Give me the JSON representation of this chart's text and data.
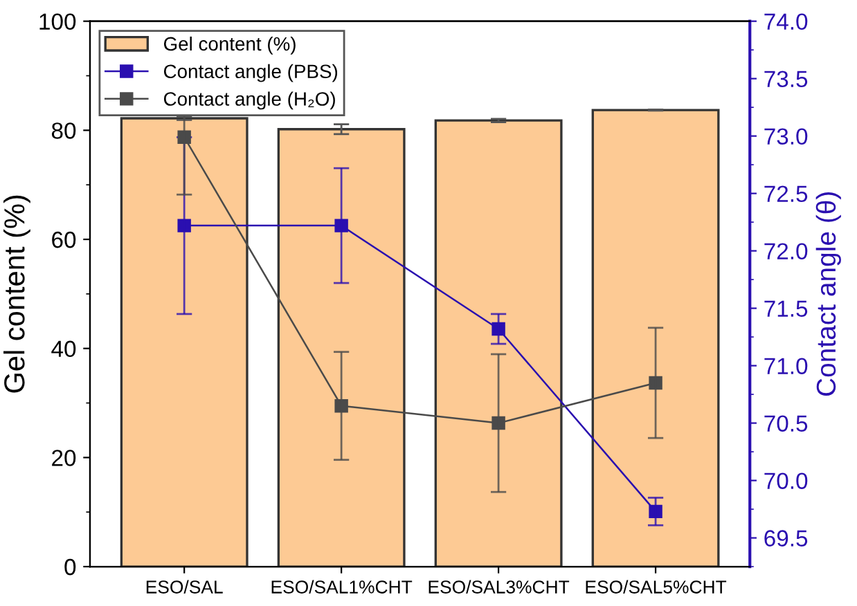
{
  "chart_data": {
    "type": "bar",
    "ylabel": "Gel content (%)",
    "y2label": "Contact angle (θ)",
    "categories": [
      "ESO/SAL",
      "ESO/SAL1%CHT",
      "ESO/SAL3%CHT",
      "ESO/SAL5%CHT"
    ],
    "series": [
      {
        "name": "Gel content (%)",
        "color": "#fdca94",
        "values": [
          82.2,
          80.2,
          81.8,
          83.7
        ],
        "errors": [
          0.3,
          0.9,
          0.3,
          0.1
        ]
      },
      {
        "name": "Contact angle (PBS)",
        "type": "line",
        "axis": "y2",
        "color": "#2a0fb0",
        "values": [
          72.22,
          72.22,
          71.32,
          69.73
        ],
        "errors": [
          0.77,
          0.5,
          0.13,
          0.12
        ]
      },
      {
        "name": "Contact angle (H₂O)",
        "type": "line",
        "axis": "y2",
        "color": "#4a4a4a",
        "values": [
          72.99,
          70.65,
          70.5,
          70.85
        ],
        "errors": [
          0.5,
          0.47,
          0.6,
          0.48
        ]
      }
    ],
    "ylim": [
      0,
      100
    ],
    "yticks": [
      0,
      20,
      40,
      60,
      80,
      100
    ],
    "y2lim": [
      69.25,
      74.0
    ],
    "y2ticks": [
      {
        "value": 69.5,
        "label": "69.5"
      },
      {
        "value": 70.0,
        "label": "70.0"
      },
      {
        "value": 70.5,
        "label": "70.5"
      },
      {
        "value": 71.0,
        "label": "71.0"
      },
      {
        "value": 71.5,
        "label": "71.5"
      },
      {
        "value": 72.0,
        "label": "72.0"
      },
      {
        "value": 72.5,
        "label": "72.5"
      },
      {
        "value": 73.0,
        "label": "73.0"
      },
      {
        "value": 73.5,
        "label": "73.5"
      },
      {
        "value": 74.0,
        "label": "74.0"
      }
    ],
    "marker": "square",
    "line_style": "solid",
    "legend": "top left",
    "grid": false
  }
}
